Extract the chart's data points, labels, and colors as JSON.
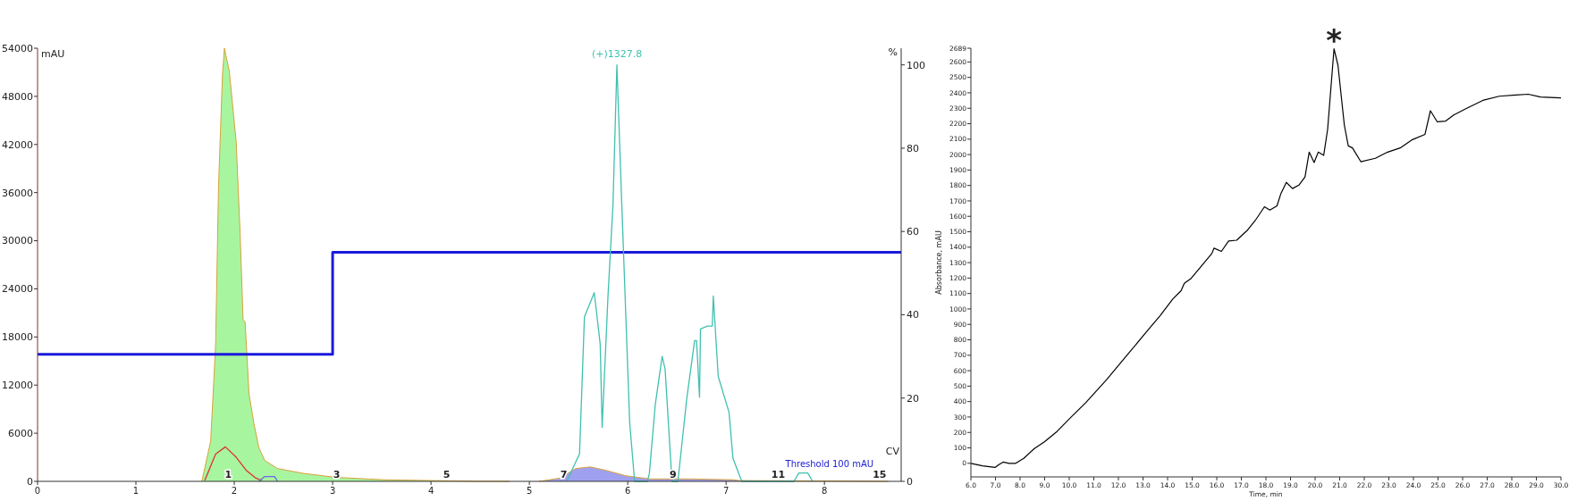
{
  "chart_data": [
    {
      "type": "area",
      "xlabel": "CV",
      "ylabel": "mAU",
      "y2label": "%",
      "xlim": [
        0,
        8.78
      ],
      "xticks": [
        0,
        1,
        2,
        3,
        4,
        5,
        6,
        7,
        8
      ],
      "ylim": [
        0,
        54000
      ],
      "yticks": [
        0,
        6000,
        12000,
        18000,
        24000,
        30000,
        36000,
        42000,
        48000,
        54000
      ],
      "y2lim": [
        0,
        104
      ],
      "y2ticks": [
        0,
        20,
        40,
        60,
        80,
        100
      ],
      "grid": false,
      "series": [
        {
          "color": "#a8f5a0",
          "x": [
            1.67,
            1.76,
            1.81,
            1.84,
            1.88,
            1.9,
            1.95,
            2.02,
            2.06,
            2.09,
            2.11,
            2.15,
            2.2,
            2.25,
            2.31,
            2.44,
            2.7,
            3.03,
            3.52,
            4.49,
            4.8
          ],
          "values": [
            0,
            5000,
            16900,
            36800,
            50700,
            54000,
            51100,
            42300,
            30800,
            20100,
            19900,
            10900,
            7200,
            4200,
            2600,
            1600,
            1000,
            500,
            200,
            0,
            0
          ]
        },
        {
          "color": "#a0a0f0",
          "x": [
            5.1,
            5.31,
            5.47,
            5.62,
            5.77,
            5.98,
            6.22,
            6.62,
            7.07,
            7.13,
            8.65
          ],
          "values": [
            0,
            400,
            1600,
            1800,
            1400,
            700,
            300,
            300,
            200,
            100,
            0
          ]
        },
        {
          "type": "line",
          "color": "#e03030",
          "x": [
            1.7,
            1.81,
            1.91,
            2.02,
            2.12,
            2.22,
            2.28
          ],
          "values": [
            100,
            3400,
            4300,
            3000,
            1400,
            400,
            100
          ]
        },
        {
          "type": "line",
          "color": "#6a6ae0",
          "x": [
            2.25,
            2.31,
            2.41,
            2.44
          ],
          "values": [
            0,
            600,
            600,
            0
          ]
        },
        {
          "type": "step",
          "color": "#1a1adb",
          "axis": "y2",
          "x": [
            0,
            3,
            8.78
          ],
          "values": [
            30.5,
            55,
            55
          ]
        },
        {
          "type": "line",
          "color": "#40c0b0",
          "axis": "y2",
          "x": [
            5.38,
            5.51,
            5.56,
            5.66,
            5.72,
            5.74,
            5.8,
            5.85,
            5.89,
            5.94,
            6.02,
            6.07,
            6.2,
            6.22,
            6.28,
            6.35,
            6.38,
            6.45,
            6.51,
            6.6,
            6.68,
            6.7,
            6.73,
            6.74,
            6.81,
            6.86,
            6.87,
            6.92,
            7.03,
            7.07,
            7.16,
            7.69,
            7.74,
            7.83,
            7.88
          ],
          "values": [
            0,
            6.6,
            39.5,
            45.3,
            33,
            13,
            44.8,
            66.3,
            100,
            66.3,
            14.1,
            0,
            0,
            1.9,
            18.4,
            30,
            27,
            0,
            0,
            19.8,
            33.8,
            33.8,
            20.2,
            36.6,
            37.3,
            37.3,
            44.5,
            25.2,
            16.6,
            5.5,
            0,
            0,
            2,
            2,
            0
          ]
        }
      ],
      "annotations": [
        "(+)1327.8",
        "Threshold 100 mAU",
        {
          "text": "1",
          "x": 1.94,
          "y": 0
        },
        {
          "text": "3",
          "x": 3.04,
          "y": 0
        },
        {
          "text": "5",
          "x": 4.16,
          "y": 0
        },
        {
          "text": "7",
          "x": 5.35,
          "y": 0
        },
        {
          "text": "9",
          "x": 6.46,
          "y": 0
        },
        {
          "text": "11",
          "x": 7.53,
          "y": 0
        },
        {
          "text": "15",
          "x": 8.56,
          "y": 0
        }
      ]
    },
    {
      "type": "line",
      "xlabel": "Time, min",
      "ylabel": "Absorbance, mAU",
      "xlim": [
        6,
        30
      ],
      "xticks": [
        {
          "value": 6,
          "label": "6.0"
        },
        {
          "value": 7,
          "label": "7.0"
        },
        {
          "value": 8,
          "label": "8.0"
        },
        {
          "value": 9,
          "label": "9.0"
        },
        {
          "value": 10,
          "label": "10.0"
        },
        {
          "value": 11,
          "label": "11.0"
        },
        {
          "value": 12,
          "label": "12.0"
        },
        {
          "value": 13,
          "label": "13.0"
        },
        {
          "value": 14,
          "label": "14.0"
        },
        {
          "value": 15,
          "label": "15.0"
        },
        {
          "value": 16,
          "label": "16.0"
        },
        {
          "value": 17,
          "label": "17.0"
        },
        {
          "value": 18,
          "label": "18.0"
        },
        {
          "value": 19,
          "label": "19.0"
        },
        {
          "value": 20,
          "label": "20.0"
        },
        {
          "value": 21,
          "label": "21.0"
        },
        {
          "value": 22,
          "label": "22.0"
        },
        {
          "value": 23,
          "label": "23.0"
        },
        {
          "value": 24,
          "label": "24.0"
        },
        {
          "value": 25,
          "label": "25.0"
        },
        {
          "value": 26,
          "label": "26.0"
        },
        {
          "value": 27,
          "label": "27.0"
        },
        {
          "value": 28,
          "label": "28.0"
        },
        {
          "value": 29,
          "label": "29.0"
        },
        {
          "value": 30,
          "label": "30.0"
        }
      ],
      "ylim": [
        -88,
        2689
      ],
      "yticks": [
        0,
        100,
        200,
        300,
        400,
        500,
        600,
        700,
        800,
        900,
        1000,
        1100,
        1200,
        1300,
        1400,
        1500,
        1600,
        1700,
        1800,
        1900,
        2000,
        2100,
        2200,
        2300,
        2400,
        2500,
        2600,
        2689
      ],
      "grid": false,
      "series": [
        {
          "color": "#000000",
          "x": [
            6,
            6.47,
            6.98,
            7.14,
            7.31,
            7.56,
            7.82,
            8.15,
            8.57,
            8.99,
            9.5,
            10,
            10.68,
            11.52,
            12.36,
            13.2,
            13.7,
            14.21,
            14.55,
            14.68,
            14.96,
            15.55,
            15.8,
            15.89,
            16.19,
            16.48,
            16.81,
            17.23,
            17.57,
            17.94,
            18.16,
            18.45,
            18.61,
            18.83,
            19.08,
            19.34,
            19.59,
            19.76,
            19.96,
            20.13,
            20.35,
            20.51,
            20.77,
            20.93,
            21.19,
            21.35,
            21.52,
            21.86,
            22.45,
            22.95,
            23.46,
            23.96,
            24.47,
            24.69,
            24.97,
            25.31,
            25.64,
            26.15,
            26.82,
            27.49,
            28.16,
            28.67,
            29.17,
            30
          ],
          "values": [
            0,
            -16,
            -27,
            -8,
            8,
            0,
            0,
            32,
            94,
            139,
            206,
            287,
            394,
            542,
            702,
            863,
            957,
            1064,
            1118,
            1166,
            1198,
            1311,
            1359,
            1394,
            1373,
            1440,
            1445,
            1507,
            1574,
            1662,
            1641,
            1668,
            1748,
            1820,
            1780,
            1802,
            1855,
            2016,
            1949,
            2016,
            1995,
            2164,
            2686,
            2579,
            2190,
            2056,
            2043,
            1954,
            1976,
            2016,
            2043,
            2097,
            2131,
            2284,
            2212,
            2217,
            2257,
            2298,
            2351,
            2378,
            2386,
            2391,
            2373,
            2367
          ]
        }
      ],
      "annotations": [
        {
          "text": "*",
          "x": 20.77,
          "y": 2686
        }
      ]
    }
  ]
}
